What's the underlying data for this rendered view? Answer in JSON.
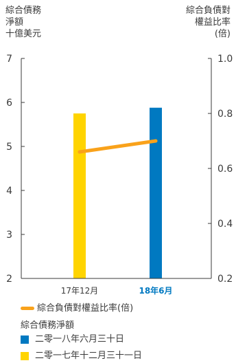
{
  "chart_data": {
    "type": "bar+line",
    "categories": [
      "17年12月",
      "18年6月"
    ],
    "highlight_category_index": 1,
    "left_axis": {
      "title_lines": [
        "綜合債務",
        "淨額",
        "十億美元"
      ],
      "ticks": [
        "7",
        "6",
        "5",
        "4",
        "3",
        "2"
      ],
      "range": [
        2,
        7
      ]
    },
    "right_axis": {
      "title_lines": [
        "綜合負債對",
        "權益比率",
        "(倍)"
      ],
      "ticks": [
        "1.0",
        "0.8",
        "0.6",
        "0.4",
        "0.2"
      ],
      "range": [
        0.2,
        1.0
      ]
    },
    "bars": {
      "values": [
        5.75,
        5.88
      ],
      "colors": [
        "#FFD400",
        "#0079C1"
      ]
    },
    "line": {
      "values": [
        0.66,
        0.7
      ],
      "color": "#F9A21B"
    },
    "legend": {
      "line_label": "綜合負債對權益比率(倍)",
      "bars_heading": "綜合債務淨額",
      "items": [
        {
          "label": "二零一八年六月三十日",
          "color": "#0079C1"
        },
        {
          "label": "二零一七年十二月三十一日",
          "color": "#FFD400"
        }
      ]
    },
    "colors": {
      "axis": "#3a3a3a",
      "highlight_label": "#0079C1"
    }
  }
}
